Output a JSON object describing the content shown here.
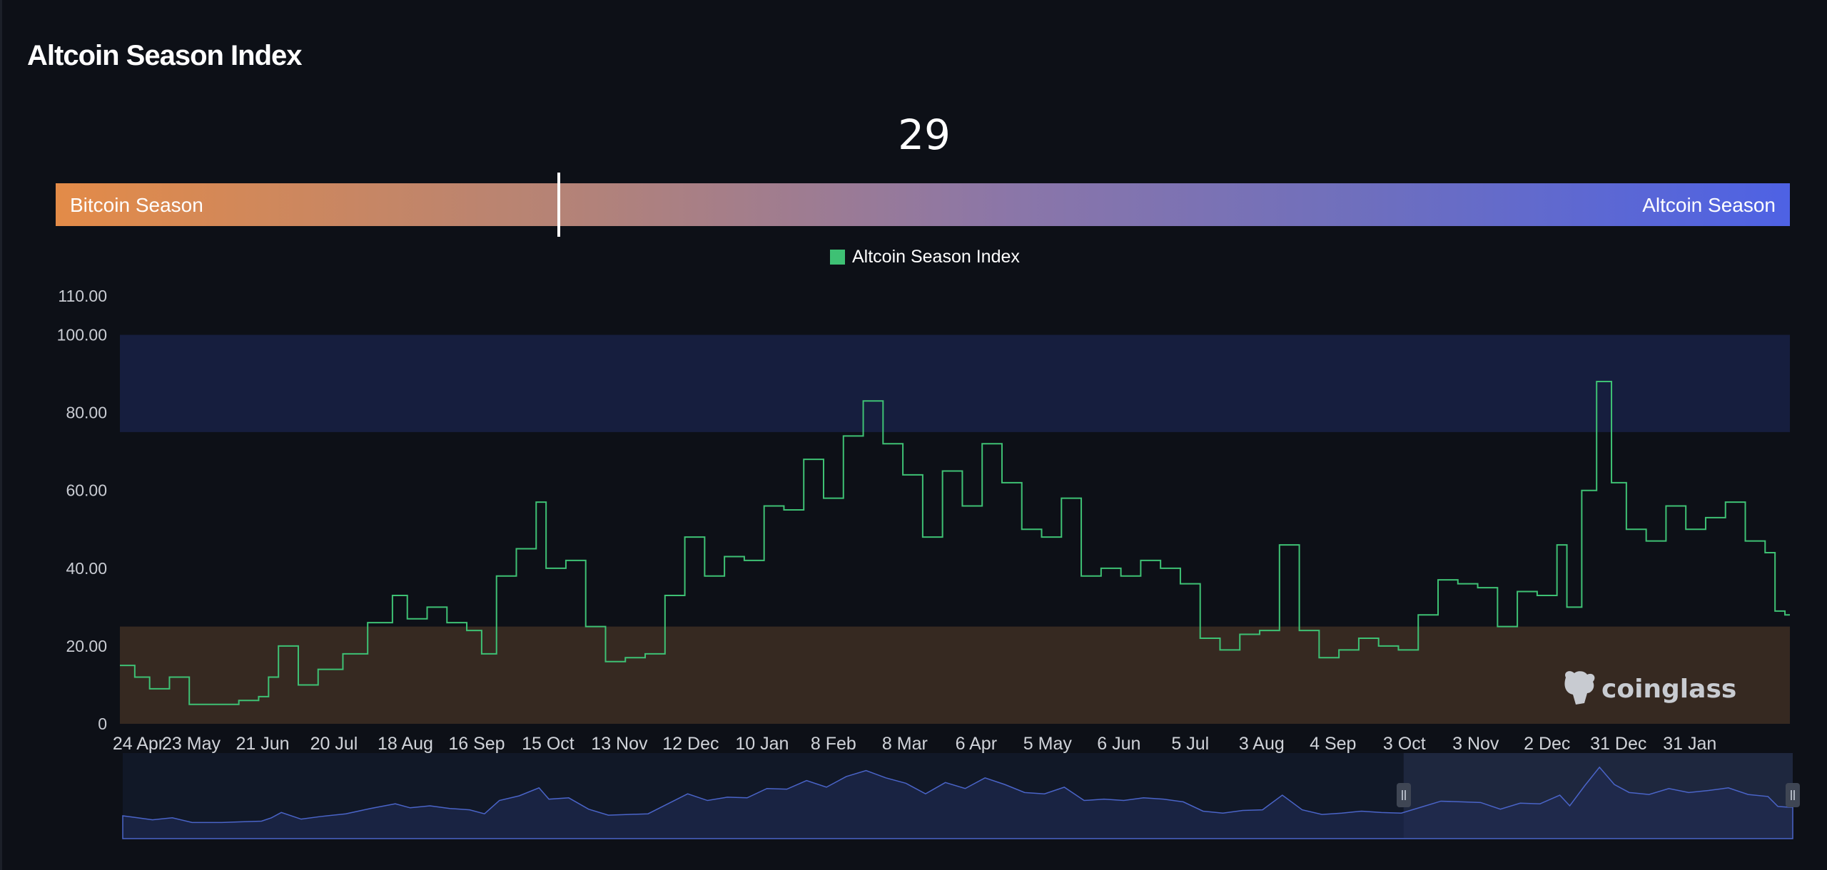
{
  "page": {
    "title": "Altcoin Season Index"
  },
  "gauge": {
    "current_value": "29",
    "value": 29,
    "min_label": "Bitcoin Season",
    "max_label": "Altcoin Season",
    "gradient_colors": [
      "#e38b48",
      "#8b76a8",
      "#4e62e4"
    ]
  },
  "watermark": {
    "text": "coinglass"
  },
  "navigator": {
    "selection_start_fraction": 0.767,
    "selection_end_fraction": 1.0
  },
  "chart_data": {
    "type": "line",
    "title": "",
    "legend_position": "top-center",
    "grid": false,
    "series": [
      {
        "name": "Altcoin Season Index",
        "color": "#3ec174",
        "points": [
          [
            0,
            15
          ],
          [
            3,
            12
          ],
          [
            6,
            9
          ],
          [
            10,
            12
          ],
          [
            14,
            5
          ],
          [
            20,
            5
          ],
          [
            24,
            6
          ],
          [
            28,
            7
          ],
          [
            30,
            12
          ],
          [
            32,
            20
          ],
          [
            36,
            10
          ],
          [
            40,
            14
          ],
          [
            45,
            18
          ],
          [
            50,
            26
          ],
          [
            55,
            33
          ],
          [
            58,
            27
          ],
          [
            62,
            30
          ],
          [
            66,
            26
          ],
          [
            70,
            24
          ],
          [
            73,
            18
          ],
          [
            76,
            38
          ],
          [
            80,
            45
          ],
          [
            84,
            57
          ],
          [
            86,
            40
          ],
          [
            90,
            42
          ],
          [
            94,
            25
          ],
          [
            98,
            16
          ],
          [
            102,
            17
          ],
          [
            106,
            18
          ],
          [
            110,
            33
          ],
          [
            114,
            48
          ],
          [
            118,
            38
          ],
          [
            122,
            43
          ],
          [
            126,
            42
          ],
          [
            130,
            56
          ],
          [
            134,
            55
          ],
          [
            138,
            68
          ],
          [
            142,
            58
          ],
          [
            146,
            74
          ],
          [
            150,
            83
          ],
          [
            154,
            72
          ],
          [
            158,
            64
          ],
          [
            162,
            48
          ],
          [
            166,
            65
          ],
          [
            170,
            56
          ],
          [
            174,
            72
          ],
          [
            178,
            62
          ],
          [
            182,
            50
          ],
          [
            186,
            48
          ],
          [
            190,
            58
          ],
          [
            194,
            38
          ],
          [
            198,
            40
          ],
          [
            202,
            38
          ],
          [
            206,
            42
          ],
          [
            210,
            40
          ],
          [
            214,
            36
          ],
          [
            218,
            22
          ],
          [
            222,
            19
          ],
          [
            226,
            23
          ],
          [
            230,
            24
          ],
          [
            234,
            46
          ],
          [
            238,
            24
          ],
          [
            242,
            17
          ],
          [
            246,
            19
          ],
          [
            250,
            22
          ],
          [
            254,
            20
          ],
          [
            258,
            19
          ],
          [
            262,
            28
          ],
          [
            266,
            37
          ],
          [
            270,
            36
          ],
          [
            274,
            35
          ],
          [
            278,
            25
          ],
          [
            282,
            34
          ],
          [
            286,
            33
          ],
          [
            290,
            46
          ],
          [
            292,
            30
          ],
          [
            295,
            60
          ],
          [
            298,
            88
          ],
          [
            301,
            62
          ],
          [
            304,
            50
          ],
          [
            308,
            47
          ],
          [
            312,
            56
          ],
          [
            316,
            50
          ],
          [
            320,
            53
          ],
          [
            324,
            57
          ],
          [
            328,
            47
          ],
          [
            332,
            44
          ],
          [
            334,
            29
          ],
          [
            336,
            28
          ]
        ]
      }
    ],
    "x_tick_labels": [
      "24 Apr",
      "23 May",
      "21 Jun",
      "20 Jul",
      "18 Aug",
      "16 Sep",
      "15 Oct",
      "13 Nov",
      "12 Dec",
      "10 Jan",
      "8 Feb",
      "8 Mar",
      "6 Apr",
      "5 May",
      "6 Jun",
      "5 Jul",
      "3 Aug",
      "4 Sep",
      "3 Oct",
      "3 Nov",
      "2 Dec",
      "31 Dec",
      "31 Jan"
    ],
    "x_tick_positions": [
      0,
      14.4,
      28.8,
      43.2,
      57.6,
      72,
      86.4,
      100.8,
      115.2,
      129.6,
      144,
      158.4,
      172.8,
      187.2,
      201.6,
      216,
      230.4,
      244.8,
      259.2,
      273.6,
      288,
      302.4,
      316.8
    ],
    "xlim": [
      0,
      337
    ],
    "y_ticks": [
      0,
      20,
      40,
      60,
      80,
      100,
      110
    ],
    "y_tick_labels": [
      "0",
      "20.00",
      "40.00",
      "60.00",
      "80.00",
      "100.00",
      "110.00"
    ],
    "ylim": [
      0,
      110
    ],
    "bands": [
      {
        "from": 75,
        "to": 100,
        "color": "#161e3e"
      },
      {
        "from": 0,
        "to": 25,
        "color": "#362921"
      }
    ]
  }
}
